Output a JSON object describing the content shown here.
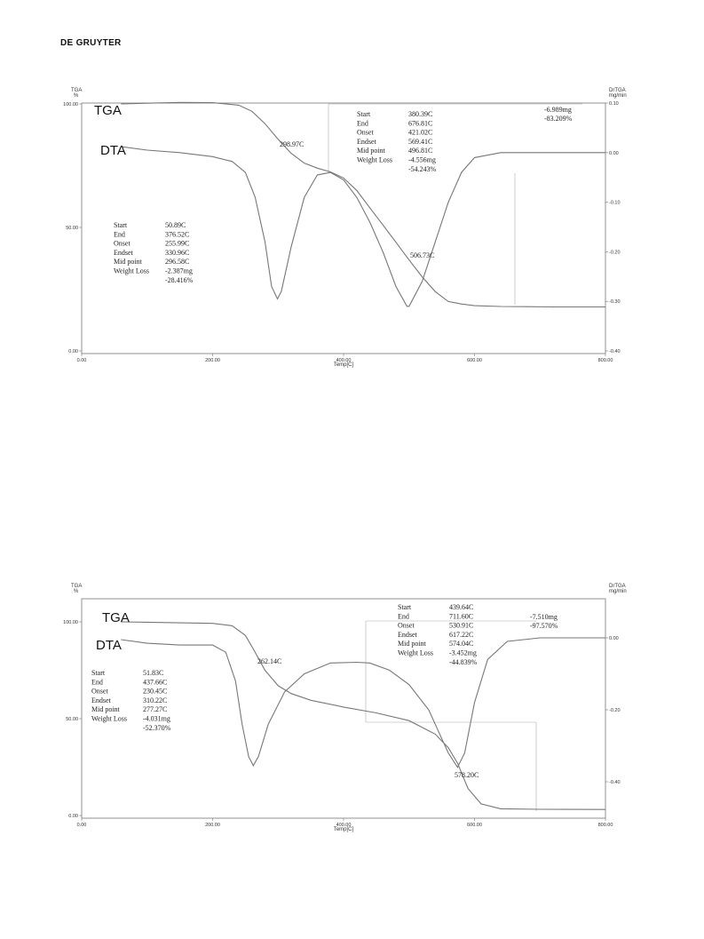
{
  "publisher": "DE GRUYTER",
  "chart_data": [
    {
      "type": "line",
      "xlabel": "Temp[C]",
      "y_left_label": [
        "TGA",
        "%"
      ],
      "y_right_label": [
        "DrTGA",
        "mg/min"
      ],
      "xlim": [
        0,
        800
      ],
      "ylim_left": [
        0,
        100
      ],
      "ylim_right": [
        0.1,
        -0.4
      ],
      "x_ticks": [
        "0.00",
        "200.00",
        "400.00",
        "600.00",
        "800.00"
      ],
      "y_left_ticks": [
        "100.00",
        "50.00",
        "0.00"
      ],
      "y_right_ticks": [
        "0.10",
        "0.00",
        "-0.10",
        "-0.20",
        "-0.30",
        "-0.40"
      ],
      "series": [
        {
          "name": "TGA",
          "x": [
            60,
            100,
            150,
            200,
            240,
            260,
            280,
            298.97,
            320,
            340,
            360,
            380,
            400,
            420,
            440,
            460,
            480,
            496.81,
            520,
            540,
            560,
            580,
            600,
            640,
            680,
            720,
            760,
            800
          ],
          "y": [
            100,
            100.3,
            100.6,
            100.5,
            99.5,
            97,
            92,
            86,
            80,
            76,
            74,
            72.5,
            70,
            65,
            58,
            51,
            44,
            38,
            30,
            24,
            20,
            19,
            18.3,
            18,
            17.9,
            17.8,
            17.8,
            17.8
          ]
        },
        {
          "name": "DTA",
          "x": [
            60,
            100,
            150,
            200,
            230,
            250,
            265,
            280,
            290,
            298.97,
            305,
            320,
            340,
            360,
            380,
            400,
            420,
            440,
            460,
            480,
            496.81,
            500,
            520,
            540,
            560,
            580,
            600,
            640,
            680,
            720,
            800
          ],
          "y": [
            0.012,
            0.005,
            0.0,
            -0.008,
            -0.018,
            -0.04,
            -0.09,
            -0.18,
            -0.27,
            -0.295,
            -0.28,
            -0.19,
            -0.09,
            -0.045,
            -0.04,
            -0.055,
            -0.09,
            -0.14,
            -0.2,
            -0.27,
            -0.31,
            -0.31,
            -0.26,
            -0.18,
            -0.1,
            -0.04,
            -0.01,
            0.0,
            0.0,
            0.0,
            0.0
          ]
        }
      ],
      "labels": {
        "tga": "TGA",
        "dta": "DTA"
      },
      "peak_labels": [
        "298.97C",
        "506.73C"
      ],
      "step1": {
        "rows": [
          {
            "k": "Start",
            "v": "50.89C"
          },
          {
            "k": "End",
            "v": "376.52C"
          },
          {
            "k": "Onset",
            "v": "255.99C"
          },
          {
            "k": "Endset",
            "v": "330.96C"
          },
          {
            "k": "Mid point",
            "v": "296.58C"
          },
          {
            "k": "Weight Loss",
            "v": "-2.387mg"
          },
          {
            "k": "",
            "v": "-28.416%"
          }
        ]
      },
      "step2": {
        "rows": [
          {
            "k": "Start",
            "v": "380.39C"
          },
          {
            "k": "End",
            "v": "676.81C"
          },
          {
            "k": "Onset",
            "v": "421.02C"
          },
          {
            "k": "Endset",
            "v": "569.41C"
          },
          {
            "k": "Mid point",
            "v": "496.81C"
          },
          {
            "k": "Weight Loss",
            "v": "-4.556mg"
          },
          {
            "k": "",
            "v": "-54.243%"
          }
        ]
      },
      "total": [
        "-6.989mg",
        "-83.209%"
      ]
    },
    {
      "type": "line",
      "xlabel": "Temp[C]",
      "y_left_label": [
        "TGA",
        "%"
      ],
      "y_right_label": [
        "DrTGA",
        "mg/min"
      ],
      "xlim": [
        0,
        800
      ],
      "ylim_left": [
        0,
        100
      ],
      "ylim_right": [
        0.1,
        -0.4
      ],
      "x_ticks": [
        "0.00",
        "200.00",
        "400.00",
        "600.00",
        "800.00"
      ],
      "y_left_ticks": [
        "100.00",
        "50.00",
        "0.00"
      ],
      "y_right_ticks": [
        "0.00",
        "-0.20",
        "-0.40"
      ],
      "series": [
        {
          "name": "TGA",
          "x": [
            60,
            100,
            150,
            200,
            230,
            250,
            262.14,
            280,
            300,
            320,
            350,
            400,
            450,
            500,
            540,
            560,
            574.04,
            590,
            610,
            640,
            700,
            800
          ],
          "y": [
            100,
            99.8,
            99.5,
            99.2,
            98,
            93,
            86,
            75,
            67,
            63,
            59.5,
            56,
            53,
            49,
            42,
            35,
            27,
            14,
            6,
            3.5,
            3.2,
            3.1
          ]
        },
        {
          "name": "DTA",
          "x": [
            60,
            100,
            150,
            200,
            220,
            235,
            245,
            255,
            262.14,
            270,
            285,
            310,
            340,
            380,
            420,
            440,
            470,
            500,
            530,
            545,
            560,
            574.04,
            585,
            600,
            620,
            650,
            700,
            800
          ],
          "y": [
            -0.005,
            -0.015,
            -0.02,
            -0.02,
            -0.04,
            -0.12,
            -0.24,
            -0.33,
            -0.355,
            -0.33,
            -0.24,
            -0.15,
            -0.1,
            -0.07,
            -0.068,
            -0.07,
            -0.09,
            -0.13,
            -0.2,
            -0.26,
            -0.32,
            -0.36,
            -0.32,
            -0.18,
            -0.06,
            -0.01,
            0.0,
            0.0
          ]
        }
      ],
      "labels": {
        "tga": "TGA",
        "dta": "DTA"
      },
      "peak_labels": [
        "262.14C",
        "578.20C"
      ],
      "step1": {
        "rows": [
          {
            "k": "Start",
            "v": "51.83C"
          },
          {
            "k": "End",
            "v": "437.66C"
          },
          {
            "k": "Onset",
            "v": "230.45C"
          },
          {
            "k": "Endset",
            "v": "310.22C"
          },
          {
            "k": "Mid point",
            "v": "277.27C"
          },
          {
            "k": "Weight Loss",
            "v": "-4.031mg"
          },
          {
            "k": "",
            "v": "-52.370%"
          }
        ]
      },
      "step2": {
        "rows": [
          {
            "k": "Start",
            "v": "439.64C"
          },
          {
            "k": "End",
            "v": "711.60C"
          },
          {
            "k": "Onset",
            "v": "530.91C"
          },
          {
            "k": "Endset",
            "v": "617.22C"
          },
          {
            "k": "Mid point",
            "v": "574.04C"
          },
          {
            "k": "Weight Loss",
            "v": "-3.452mg"
          },
          {
            "k": "",
            "v": "-44.839%"
          }
        ]
      },
      "total": [
        "-7.510mg",
        "-97.570%"
      ]
    }
  ]
}
